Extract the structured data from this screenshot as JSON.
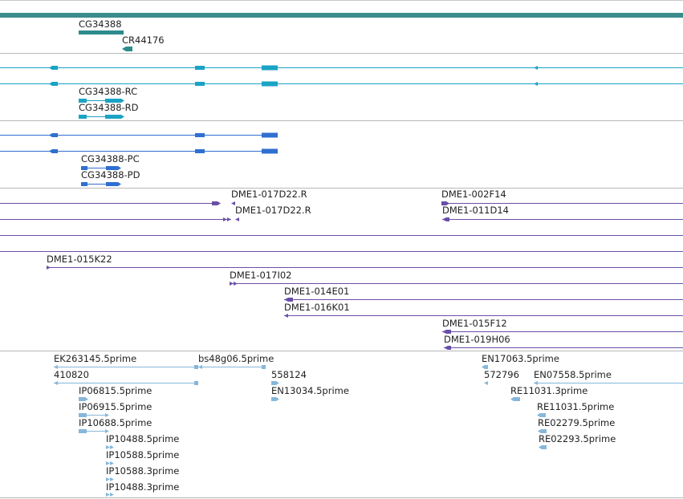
{
  "colors": {
    "genome": "#3a8c8c",
    "gene_track": "#2e8b8b",
    "transcript": "#1aa3c4",
    "protein": "#2f6fd0",
    "clone": "#6a4fa8",
    "est": "#86b7da",
    "divider": "#b8b8b8",
    "label": "#222222"
  },
  "tracks": {
    "genes": {
      "features": [
        {
          "id": "CG34388",
          "label": "CG34388"
        },
        {
          "id": "CR44176",
          "label": "CR44176"
        }
      ]
    },
    "transcripts": {
      "features": [
        {
          "id": "CG34388-RC",
          "label": "CG34388-RC"
        },
        {
          "id": "CG34388-RD",
          "label": "CG34388-RD"
        }
      ]
    },
    "proteins": {
      "features": [
        {
          "id": "CG34388-PC",
          "label": "CG34388-PC"
        },
        {
          "id": "CG34388-PD",
          "label": "CG34388-PD"
        }
      ]
    },
    "clone_ends": {
      "features": [
        {
          "id": "DME1-017D22.R-a",
          "label": "DME1-017D22.R"
        },
        {
          "id": "DME1-017D22.R-b",
          "label": "DME1-017D22.R"
        },
        {
          "id": "DME1-002F14",
          "label": "DME1-002F14"
        },
        {
          "id": "DME1-011D14",
          "label": "DME1-011D14"
        }
      ]
    },
    "clones": {
      "features": [
        {
          "id": "DME1-015K22",
          "label": "DME1-015K22"
        },
        {
          "id": "DME1-017I02",
          "label": "DME1-017I02"
        },
        {
          "id": "DME1-014E01",
          "label": "DME1-014E01"
        },
        {
          "id": "DME1-016K01",
          "label": "DME1-016K01"
        },
        {
          "id": "DME1-015F12",
          "label": "DME1-015F12"
        },
        {
          "id": "DME1-019H06",
          "label": "DME1-019H06"
        }
      ]
    },
    "ests": {
      "features": [
        {
          "id": "EK263145.5prime",
          "label": "EK263145.5prime"
        },
        {
          "id": "410820",
          "label": "410820"
        },
        {
          "id": "bs48g06.5prime",
          "label": "bs48g06.5prime"
        },
        {
          "id": "558124",
          "label": "558124"
        },
        {
          "id": "EN13034.5prime",
          "label": "EN13034.5prime"
        },
        {
          "id": "IP06815.5prime",
          "label": "IP06815.5prime"
        },
        {
          "id": "IP06915.5prime",
          "label": "IP06915.5prime"
        },
        {
          "id": "IP10688.5prime",
          "label": "IP10688.5prime"
        },
        {
          "id": "IP10488.5prime",
          "label": "IP10488.5prime"
        },
        {
          "id": "IP10588.5prime",
          "label": "IP10588.5prime"
        },
        {
          "id": "IP10588.3prime",
          "label": "IP10588.3prime"
        },
        {
          "id": "IP10488.3prime",
          "label": "IP10488.3prime"
        },
        {
          "id": "EN17063.5prime",
          "label": "EN17063.5prime"
        },
        {
          "id": "572796",
          "label": "572796"
        },
        {
          "id": "EN07558.5prime",
          "label": "EN07558.5prime"
        },
        {
          "id": "RE11031.3prime",
          "label": "RE11031.3prime"
        },
        {
          "id": "RE11031.5prime",
          "label": "RE11031.5prime"
        },
        {
          "id": "RE02279.5prime",
          "label": "RE02279.5prime"
        },
        {
          "id": "RE02293.5prime",
          "label": "RE02293.5prime"
        }
      ]
    }
  }
}
